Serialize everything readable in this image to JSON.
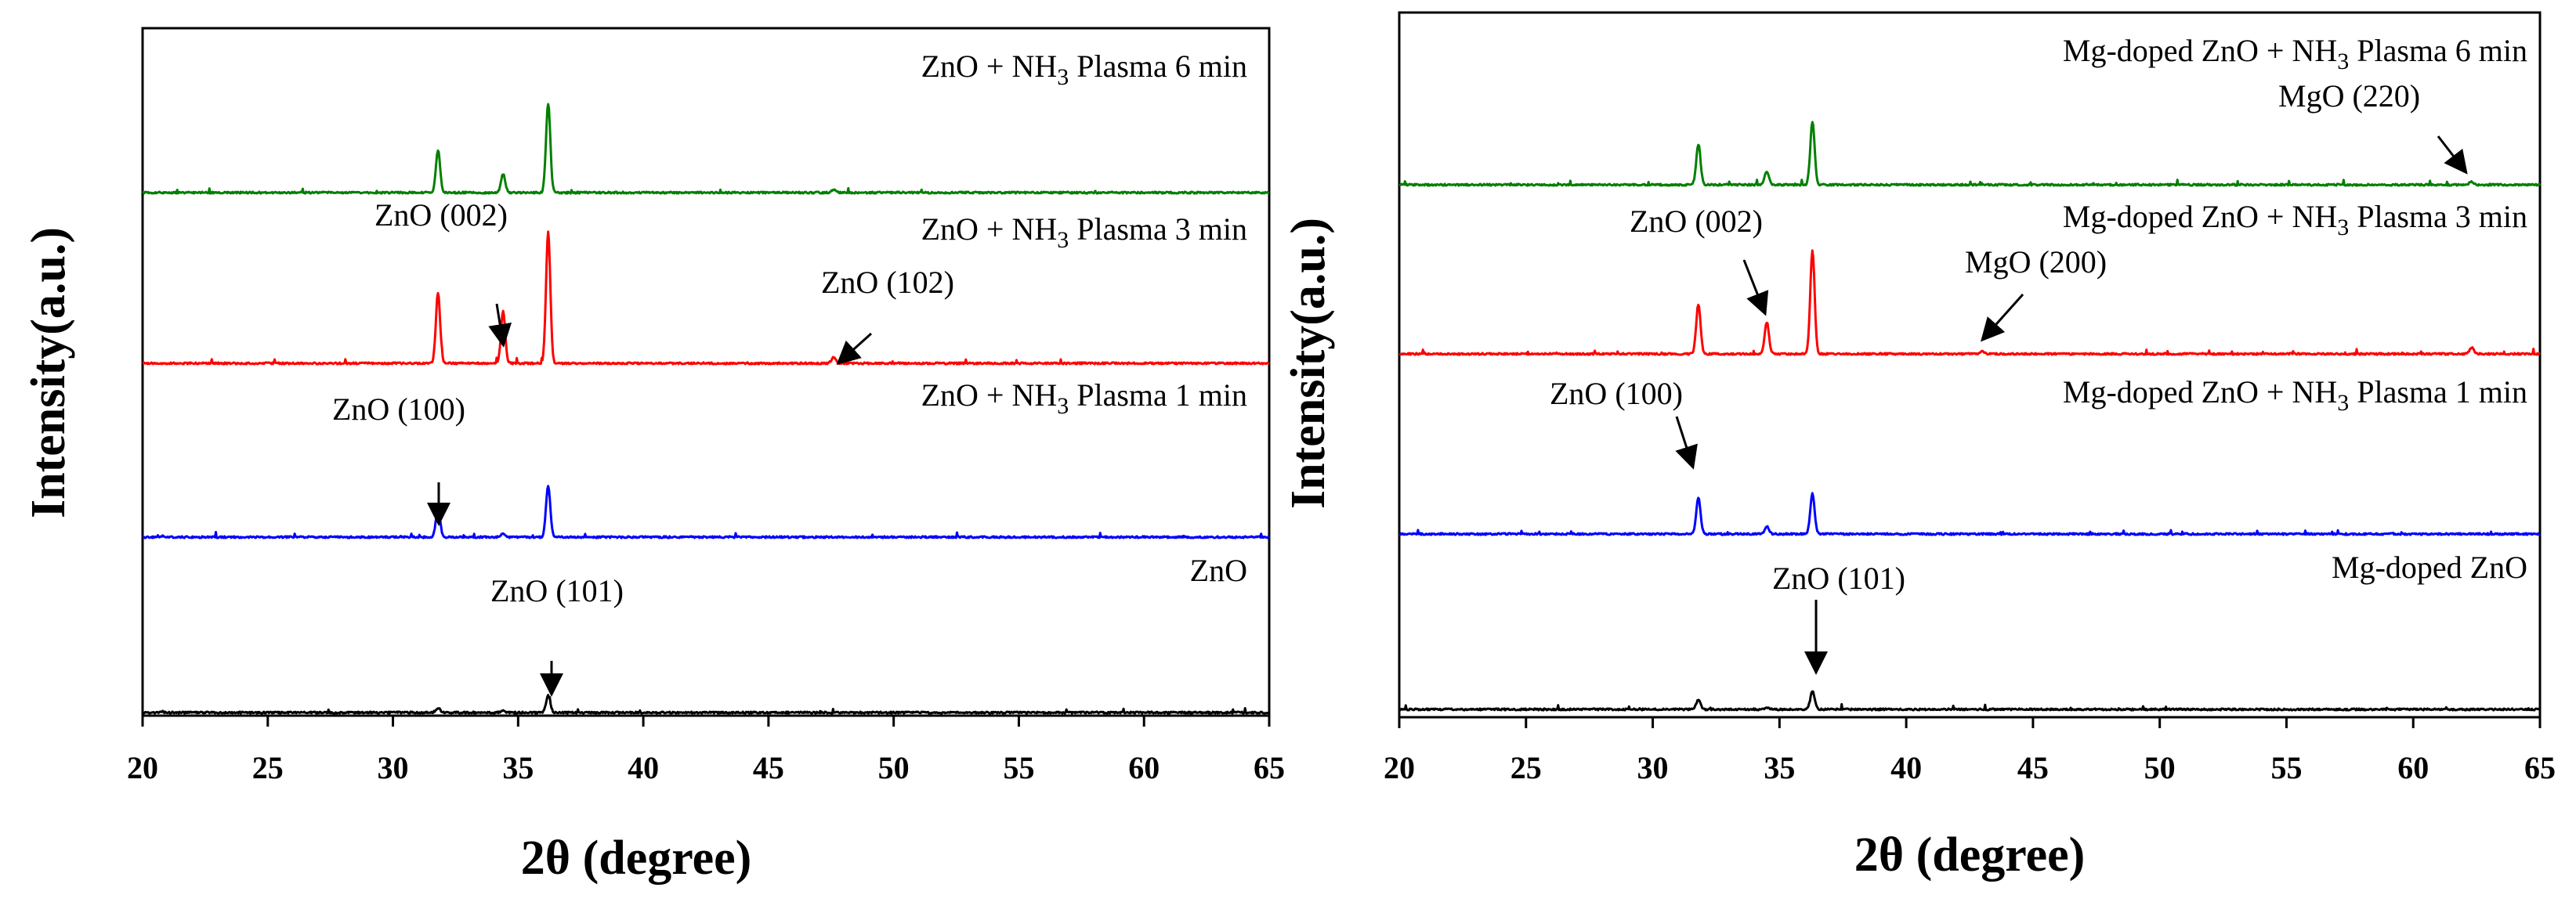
{
  "chart_data": [
    {
      "type": "line",
      "panel": "left",
      "title": "",
      "xlabel": "2θ (degree)",
      "ylabel": "Intensity(a.u.)",
      "xlim": [
        20,
        65
      ],
      "xticks": [
        20,
        25,
        30,
        35,
        40,
        45,
        50,
        55,
        60,
        65
      ],
      "yticks": false,
      "series": [
        {
          "name": "ZnO",
          "label_main": "ZnO",
          "label_sub": "",
          "label_tail": "",
          "color": "#000000",
          "peaks": [
            [
              31.8,
              0.05
            ],
            [
              34.4,
              0.02
            ],
            [
              36.2,
              0.18
            ]
          ]
        },
        {
          "name": "ZnO + NH3 Plasma 1 min",
          "label_main": "ZnO + NH",
          "label_sub": "3",
          "label_tail": " Plasma 1 min",
          "color": "#0000ff",
          "peaks": [
            [
              31.8,
              0.3
            ],
            [
              34.4,
              0.04
            ],
            [
              36.2,
              0.55
            ]
          ]
        },
        {
          "name": "ZnO + NH3 Plasma 3 min",
          "label_main": "ZnO + NH",
          "label_sub": "3",
          "label_tail": " Plasma 3 min",
          "color": "#ff0000",
          "peaks": [
            [
              31.8,
              0.75
            ],
            [
              34.4,
              0.55
            ],
            [
              36.2,
              1.4
            ],
            [
              47.6,
              0.06
            ]
          ]
        },
        {
          "name": "ZnO + NH3 Plasma 6 min",
          "label_main": "ZnO + NH",
          "label_sub": "3",
          "label_tail": " Plasma 6 min",
          "color": "#008000",
          "peaks": [
            [
              31.8,
              0.45
            ],
            [
              34.4,
              0.2
            ],
            [
              36.2,
              0.95
            ],
            [
              47.6,
              0.03
            ]
          ]
        }
      ],
      "annotations": [
        {
          "text": "ZnO (002)"
        },
        {
          "text": "ZnO (102)"
        },
        {
          "text": "ZnO (100)"
        },
        {
          "text": "ZnO (101)"
        }
      ]
    },
    {
      "type": "line",
      "panel": "right",
      "title": "",
      "xlabel": "2θ (degree)",
      "ylabel": "Intensity(a.u.)",
      "xlim": [
        20,
        65
      ],
      "xticks": [
        20,
        25,
        30,
        35,
        40,
        45,
        50,
        55,
        60,
        65
      ],
      "yticks": false,
      "series": [
        {
          "name": "Mg-doped ZnO",
          "label_main": "Mg-doped ZnO",
          "label_sub": "",
          "label_tail": "",
          "color": "#000000",
          "peaks": [
            [
              31.8,
              0.1
            ],
            [
              34.5,
              0.02
            ],
            [
              36.3,
              0.2
            ]
          ]
        },
        {
          "name": "Mg-doped ZnO + NH3 Plasma 1 min",
          "label_main": "Mg-doped ZnO + NH",
          "label_sub": "3",
          "label_tail": " Plasma 1 min",
          "color": "#0000ff",
          "peaks": [
            [
              31.8,
              0.4
            ],
            [
              34.5,
              0.08
            ],
            [
              36.3,
              0.45
            ]
          ]
        },
        {
          "name": "Mg-doped ZnO + NH3 Plasma 3 min",
          "label_main": "Mg-doped ZnO + NH",
          "label_sub": "3",
          "label_tail": " Plasma 3 min",
          "color": "#ff0000",
          "peaks": [
            [
              31.8,
              0.55
            ],
            [
              34.5,
              0.35
            ],
            [
              36.3,
              1.15
            ],
            [
              43.0,
              0.03
            ],
            [
              62.3,
              0.07
            ]
          ]
        },
        {
          "name": "Mg-doped ZnO + NH3 Plasma 6 min",
          "label_main": "Mg-doped ZnO + NH",
          "label_sub": "3",
          "label_tail": " Plasma 6 min",
          "color": "#008000",
          "peaks": [
            [
              31.8,
              0.45
            ],
            [
              34.5,
              0.15
            ],
            [
              36.3,
              0.7
            ],
            [
              62.3,
              0.03
            ]
          ]
        }
      ],
      "annotations": [
        {
          "text": "MgO (220)"
        },
        {
          "text": "ZnO (002)"
        },
        {
          "text": "MgO (200)"
        },
        {
          "text": "ZnO (100)"
        },
        {
          "text": "ZnO (101)"
        }
      ]
    }
  ]
}
